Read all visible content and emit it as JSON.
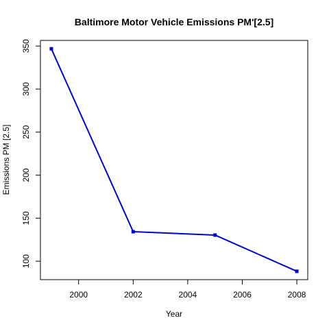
{
  "chart_data": {
    "type": "line",
    "title": "Baltimore Motor Vehicle Emissions PM'[2.5]",
    "xlabel": "Year",
    "ylabel": "Emissions PM [2.5]",
    "x": [
      1999,
      2002,
      2005,
      2008
    ],
    "series": [
      {
        "values": [
          346.8,
          134.3,
          130.4,
          88.3
        ],
        "color": "#0000cc"
      }
    ],
    "xlim": [
      1998.6,
      2008.4
    ],
    "ylim": [
      78.6,
      356.5
    ],
    "xticks": [
      2000,
      2002,
      2004,
      2006,
      2008
    ],
    "yticks": [
      100,
      150,
      200,
      250,
      300,
      350
    ],
    "grid": false,
    "legend": "none"
  }
}
